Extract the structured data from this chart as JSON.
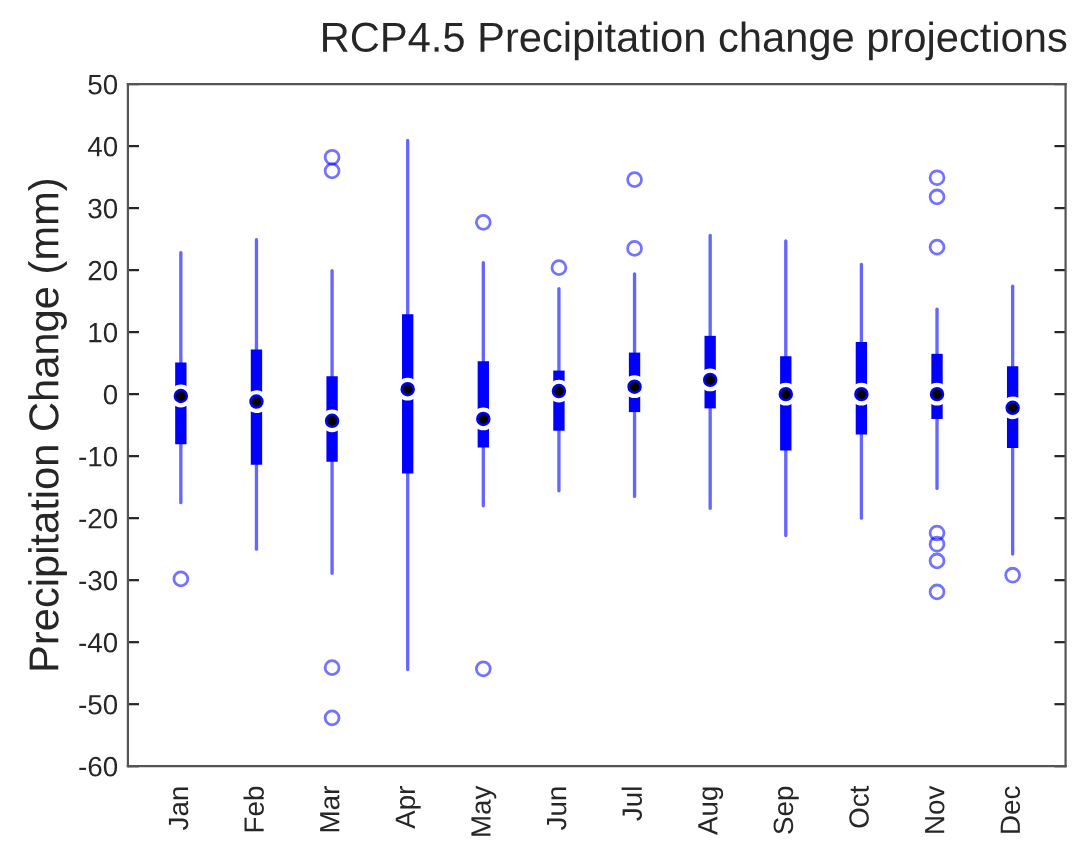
{
  "chart_data": {
    "type": "box",
    "title": "RCP4.5 Precipitation change projections",
    "ylabel": "Precipitation Change (mm)",
    "categories": [
      "Jan",
      "Feb",
      "Mar",
      "Apr",
      "May",
      "Jun",
      "Jul",
      "Aug",
      "Sep",
      "Oct",
      "Nov",
      "Dec"
    ],
    "color": "#0000ff",
    "boxes": [
      {
        "low": -17.5,
        "q1": -8.1,
        "median": -0.3,
        "q3": 5.1,
        "high": 22.8,
        "outliers": [
          -29.8
        ]
      },
      {
        "low": -25,
        "q1": -11.4,
        "median": -1.2,
        "q3": 7.2,
        "high": 24.9
      },
      {
        "low": -28.9,
        "q1": -10.9,
        "median": -4.3,
        "q3": 2.9,
        "high": 19.9,
        "outliers": [
          36,
          38.2,
          -44.1,
          -52.2
        ]
      },
      {
        "low": -44.4,
        "q1": -12.8,
        "median": 0.8,
        "q3": 12.9,
        "high": 40.9
      },
      {
        "low": -18,
        "q1": -8.6,
        "median": -4,
        "q3": 5.3,
        "high": 21.2,
        "outliers": [
          27.7,
          -44.3
        ]
      },
      {
        "low": -15.6,
        "q1": -5.9,
        "median": 0.5,
        "q3": 3.8,
        "high": 17,
        "outliers": [
          20.4
        ]
      },
      {
        "low": -16.5,
        "q1": -2.9,
        "median": 1.2,
        "q3": 6.7,
        "high": 19.4,
        "outliers": [
          34.6,
          23.5
        ]
      },
      {
        "low": -18.4,
        "q1": -2.3,
        "median": 2.3,
        "q3": 9.4,
        "high": 25.6
      },
      {
        "low": -22.8,
        "q1": -9.1,
        "median": 0,
        "q3": 6.1,
        "high": 24.7
      },
      {
        "low": -20,
        "q1": -6.5,
        "median": 0,
        "q3": 8.4,
        "high": 20.9
      },
      {
        "low": -15.2,
        "q1": -4,
        "median": 0,
        "q3": 6.5,
        "high": 13.7,
        "outliers": [
          34.9,
          31.8,
          23.7,
          -22.4,
          -24.2,
          -26.9,
          -31.9
        ]
      },
      {
        "low": -25.8,
        "q1": -8.7,
        "median": -2.2,
        "q3": 4.5,
        "high": 17.4,
        "outliers": [
          -29.2
        ]
      }
    ],
    "ylim": [
      -60,
      50
    ],
    "yticks": [
      -60,
      -50,
      -40,
      -30,
      -20,
      -10,
      0,
      10,
      20,
      30,
      40,
      50
    ],
    "grid": false
  }
}
